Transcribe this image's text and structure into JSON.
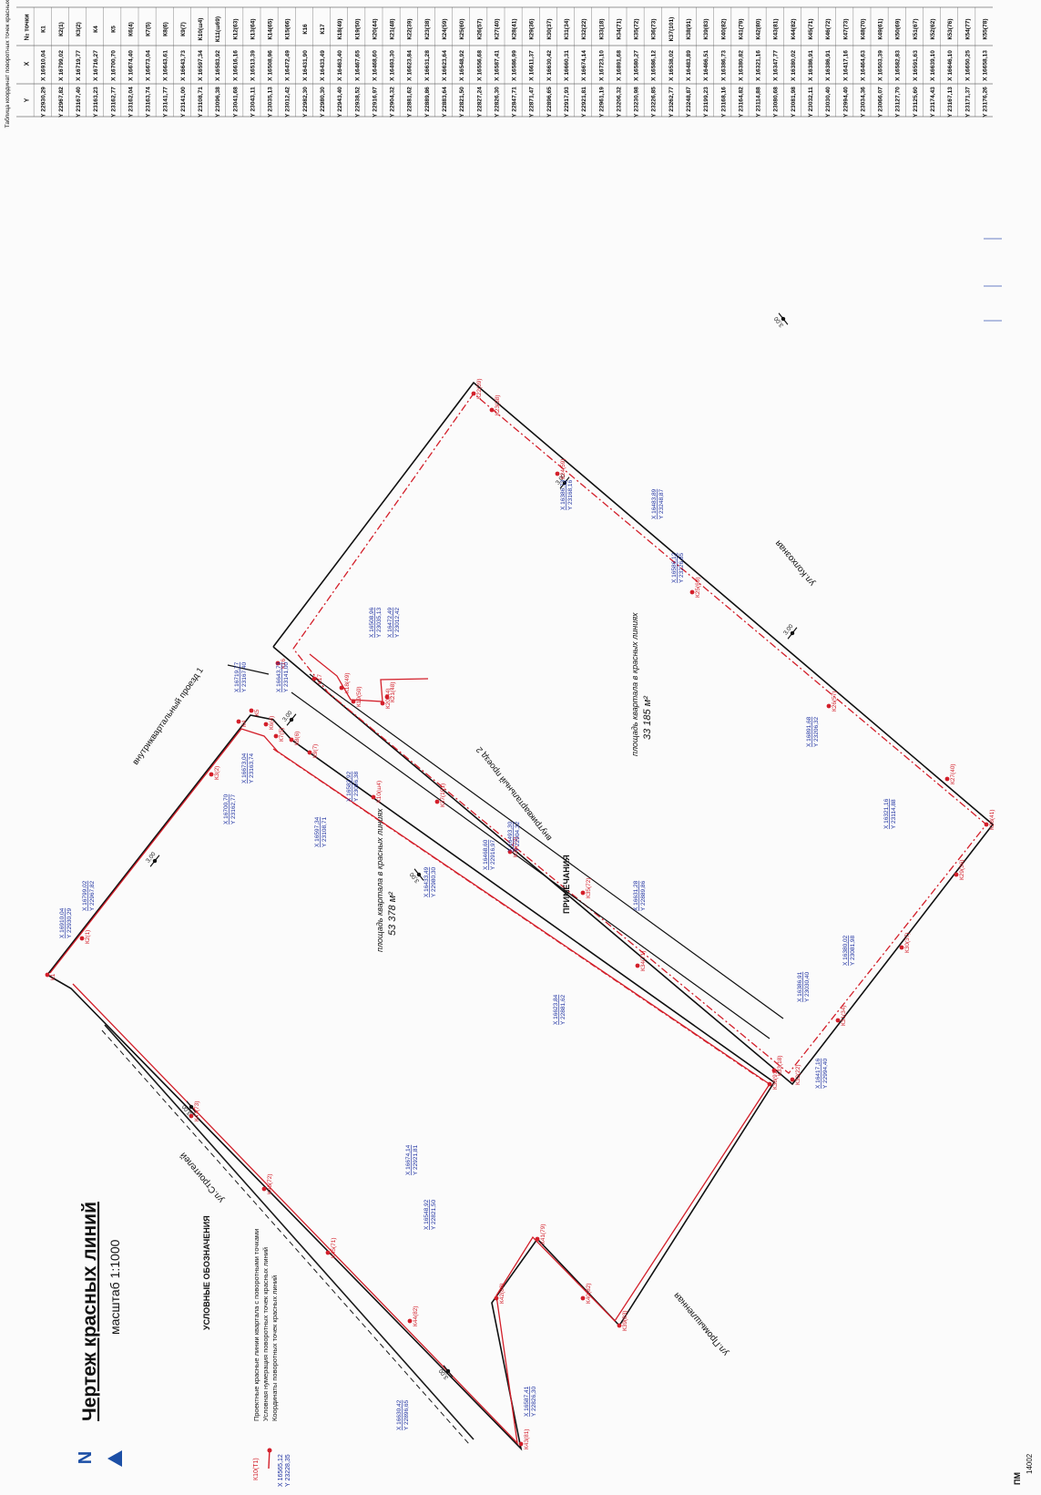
{
  "title": "Чертеж красных линий",
  "scale": "масштаб 1:1000",
  "table_title": "Таблица координат поворотных точек красных линий",
  "table_headers": [
    "№ точки",
    "X",
    "Y"
  ],
  "table_rows": [
    [
      "К1",
      "X 16910,04",
      "Y 22930,29"
    ],
    [
      "К2(1)",
      "X 16799,02",
      "Y 22967,82"
    ],
    [
      "К3(2)",
      "X 16719,77",
      "Y 23167,40"
    ],
    [
      "К4",
      "X 16716,27",
      "Y 23163,23"
    ],
    [
      "К5",
      "X 16700,70",
      "Y 23162,77"
    ],
    [
      "К6(4)",
      "X 16674,40",
      "Y 23162,04"
    ],
    [
      "К7(5)",
      "X 16673,04",
      "Y 23163,74"
    ],
    [
      "К8(6)",
      "X 16643,61",
      "Y 23141,77"
    ],
    [
      "К9(7)",
      "X 16643,73",
      "Y 23141,00"
    ],
    [
      "К10(ш4)",
      "X 16597,34",
      "Y 23108,71"
    ],
    [
      "К11(ш69)",
      "X 16583,92",
      "Y 23096,38"
    ],
    [
      "К12(63)",
      "X 16616,16",
      "Y 23041,68"
    ],
    [
      "К13(64)",
      "X 16513,39",
      "Y 23043,11"
    ],
    [
      "К14(65)",
      "X 16508,96",
      "Y 23035,13"
    ],
    [
      "К15(66)",
      "X 16472,49",
      "Y 23012,42"
    ],
    [
      "К16",
      "X 16431,90",
      "Y 22982,30"
    ],
    [
      "К17",
      "X 16433,49",
      "Y 22980,30"
    ],
    [
      "К18(49)",
      "X 16463,40",
      "Y 22943,40"
    ],
    [
      "К19(50)",
      "X 16467,65",
      "Y 22938,52"
    ],
    [
      "К20(44)",
      "X 16468,60",
      "Y 22916,97"
    ],
    [
      "К21(48)",
      "X 16493,30",
      "Y 22904,32"
    ],
    [
      "К22(39)",
      "X 16623,84",
      "Y 22881,62"
    ],
    [
      "К23(38)",
      "X 16631,28",
      "Y 22889,86"
    ],
    [
      "К24(59)",
      "X 16623,64",
      "Y 22883,64"
    ],
    [
      "К25(60)",
      "X 16548,92",
      "Y 22821,50"
    ],
    [
      "К26(57)",
      "X 16556,68",
      "Y 22827,24"
    ],
    [
      "К27(40)",
      "X 16587,41",
      "Y 22826,30"
    ],
    [
      "К28(41)",
      "X 16586,99",
      "Y 22847,71"
    ],
    [
      "К29(36)",
      "X 16611,37",
      "Y 22871,47"
    ],
    [
      "К30(37)",
      "X 16630,42",
      "Y 22896,65"
    ],
    [
      "К31(34)",
      "X 16660,31",
      "Y 22917,93"
    ],
    [
      "К32(22)",
      "X 16674,14",
      "Y 22921,81"
    ],
    [
      "К33(18)",
      "X 16723,10",
      "Y 22961,19"
    ],
    [
      "К34(71)",
      "X 16891,68",
      "Y 23206,32"
    ],
    [
      "К35(72)",
      "X 16580,27",
      "Y 23230,98"
    ],
    [
      "К36(73)",
      "X 16586,12",
      "Y 23226,85"
    ],
    [
      "К37(101)",
      "X 16538,02",
      "Y 23262,77"
    ],
    [
      "К38(91)",
      "X 16483,89",
      "Y 23248,87"
    ],
    [
      "К39(83)",
      "X 16466,51",
      "Y 23199,23"
    ],
    [
      "К40(82)",
      "X 16386,73",
      "Y 23168,16"
    ],
    [
      "К41(79)",
      "X 16380,82",
      "Y 23164,82"
    ],
    [
      "К42(80)",
      "X 16321,16",
      "Y 23114,88"
    ],
    [
      "К43(81)",
      "X 16347,77",
      "Y 23080,68"
    ],
    [
      "К44(82)",
      "X 16380,02",
      "Y 23081,98"
    ],
    [
      "К45(71)",
      "X 16386,91",
      "Y 23032,11"
    ],
    [
      "К46(72)",
      "X 16386,91",
      "Y 23030,40"
    ],
    [
      "К47(73)",
      "X 16417,16",
      "Y 22994,40"
    ],
    [
      "К48(70)",
      "X 16464,63",
      "Y 23034,36"
    ],
    [
      "К49(61)",
      "X 16503,39",
      "Y 23066,07"
    ],
    [
      "К50(69)",
      "X 16582,83",
      "Y 23127,70"
    ],
    [
      "К51(67)",
      "X 16591,63",
      "Y 23125,60"
    ],
    [
      "К52(62)",
      "X 16639,10",
      "Y 23174,43"
    ],
    [
      "К53(76)",
      "X 16646,10",
      "Y 23167,13"
    ],
    [
      "К54(77)",
      "X 16650,25",
      "Y 23171,37"
    ],
    [
      "К55(78)",
      "X 16658,13",
      "Y 23176,26"
    ]
  ],
  "legend": {
    "heading": "УСЛОВНЫЕ ОБОЗНАЧЕНИЯ",
    "items": [
      "Проектные красные линии квартала с поворотными точками",
      "Условная нумерация поворотных точек красных линий",
      "Координаты поворотных точек красных линий"
    ],
    "sample_point": "К10(Т1)",
    "sample_x": "X 16565,12",
    "sample_y": "Y 23228,35"
  },
  "notes_label": "ПРИМЕЧАНИЯ",
  "stamp": {
    "code": "14002",
    "label": "ПМ"
  },
  "streets": [
    "ул.Строителей",
    "ул.Промышленная",
    "ул.Колхозная",
    "внутриквартальный проезд 1",
    "внутриквартальный проезд 2"
  ],
  "areas": [
    {
      "text": "площадь квартала в красных линиях",
      "value": "53 378 м²"
    },
    {
      "text": "площадь квартала в красных линиях",
      "value": "33 185 м²"
    }
  ],
  "north_arrow": "N",
  "point_labels": [
    "К1",
    "К2(1)",
    "К3(2)",
    "К4",
    "К5",
    "К6(4)",
    "К7(5)",
    "К8(6)",
    "К9(7)",
    "К10(ш4)",
    "К16",
    "К17",
    "К18(49)",
    "К19(50)",
    "К20(44)",
    "К21(48)",
    "К22(39)",
    "К23(38)",
    "К24(59)",
    "К25(60)",
    "К26(57)",
    "К27(40)",
    "К28(41)",
    "К29(36)",
    "К30(37)",
    "К31(34)",
    "К32(22)",
    "К33(18)",
    "К34(71)",
    "К35(72)",
    "К36(73)",
    "К37(101)",
    "К38(91)",
    "К39(83)",
    "К40(82)",
    "К41(79)",
    "К42(80)",
    "К43(81)",
    "К44(82)",
    "К45(71)",
    "К46(72)",
    "К47(73)"
  ],
  "coord_labels": [
    [
      "X 16910,04",
      "Y 22930,29"
    ],
    [
      "X 16799,02",
      "Y 22967,82"
    ],
    [
      "X 16719,77",
      "Y 23167,40"
    ],
    [
      "X 16700,70",
      "Y 23162,77"
    ],
    [
      "X 16673,04",
      "Y 23163,74"
    ],
    [
      "X 16643,73",
      "Y 23141,00"
    ],
    [
      "X 16597,34",
      "Y 23108,71"
    ],
    [
      "X 16583,92",
      "Y 23096,38"
    ],
    [
      "X 16508,96",
      "Y 23035,13"
    ],
    [
      "X 16472,49",
      "Y 23012,42"
    ],
    [
      "X 16433,49",
      "Y 22980,30"
    ],
    [
      "X 16468,60",
      "Y 22916,97"
    ],
    [
      "X 16493,30",
      "Y 22904,32"
    ],
    [
      "X 16623,84",
      "Y 22881,62"
    ],
    [
      "X 16631,28",
      "Y 22889,86"
    ],
    [
      "X 16548,92",
      "Y 22821,50"
    ],
    [
      "X 16587,41",
      "Y 22826,30"
    ],
    [
      "X 16630,42",
      "Y 22896,65"
    ],
    [
      "X 16674,14",
      "Y 22921,81"
    ],
    [
      "X 16891,68",
      "Y 23206,32"
    ],
    [
      "X 16586,12",
      "Y 23226,85"
    ],
    [
      "X 16483,89",
      "Y 23248,87"
    ],
    [
      "X 16386,73",
      "Y 23168,16"
    ],
    [
      "X 16321,16",
      "Y 23114,88"
    ],
    [
      "X 16380,02",
      "Y 23081,98"
    ],
    [
      "X 16386,91",
      "Y 23030,40"
    ],
    [
      "X 16417,16",
      "Y 22994,40"
    ]
  ],
  "dimensions": [
    "3,00",
    "3,00",
    "3,00",
    "3,00",
    "3,00",
    "3,00",
    "3,00",
    "3,00"
  ],
  "colors": {
    "red_line": "#d31f2a",
    "boundary": "#111111",
    "coords": "#1c2fa0",
    "extra": "#8a2aa8"
  }
}
